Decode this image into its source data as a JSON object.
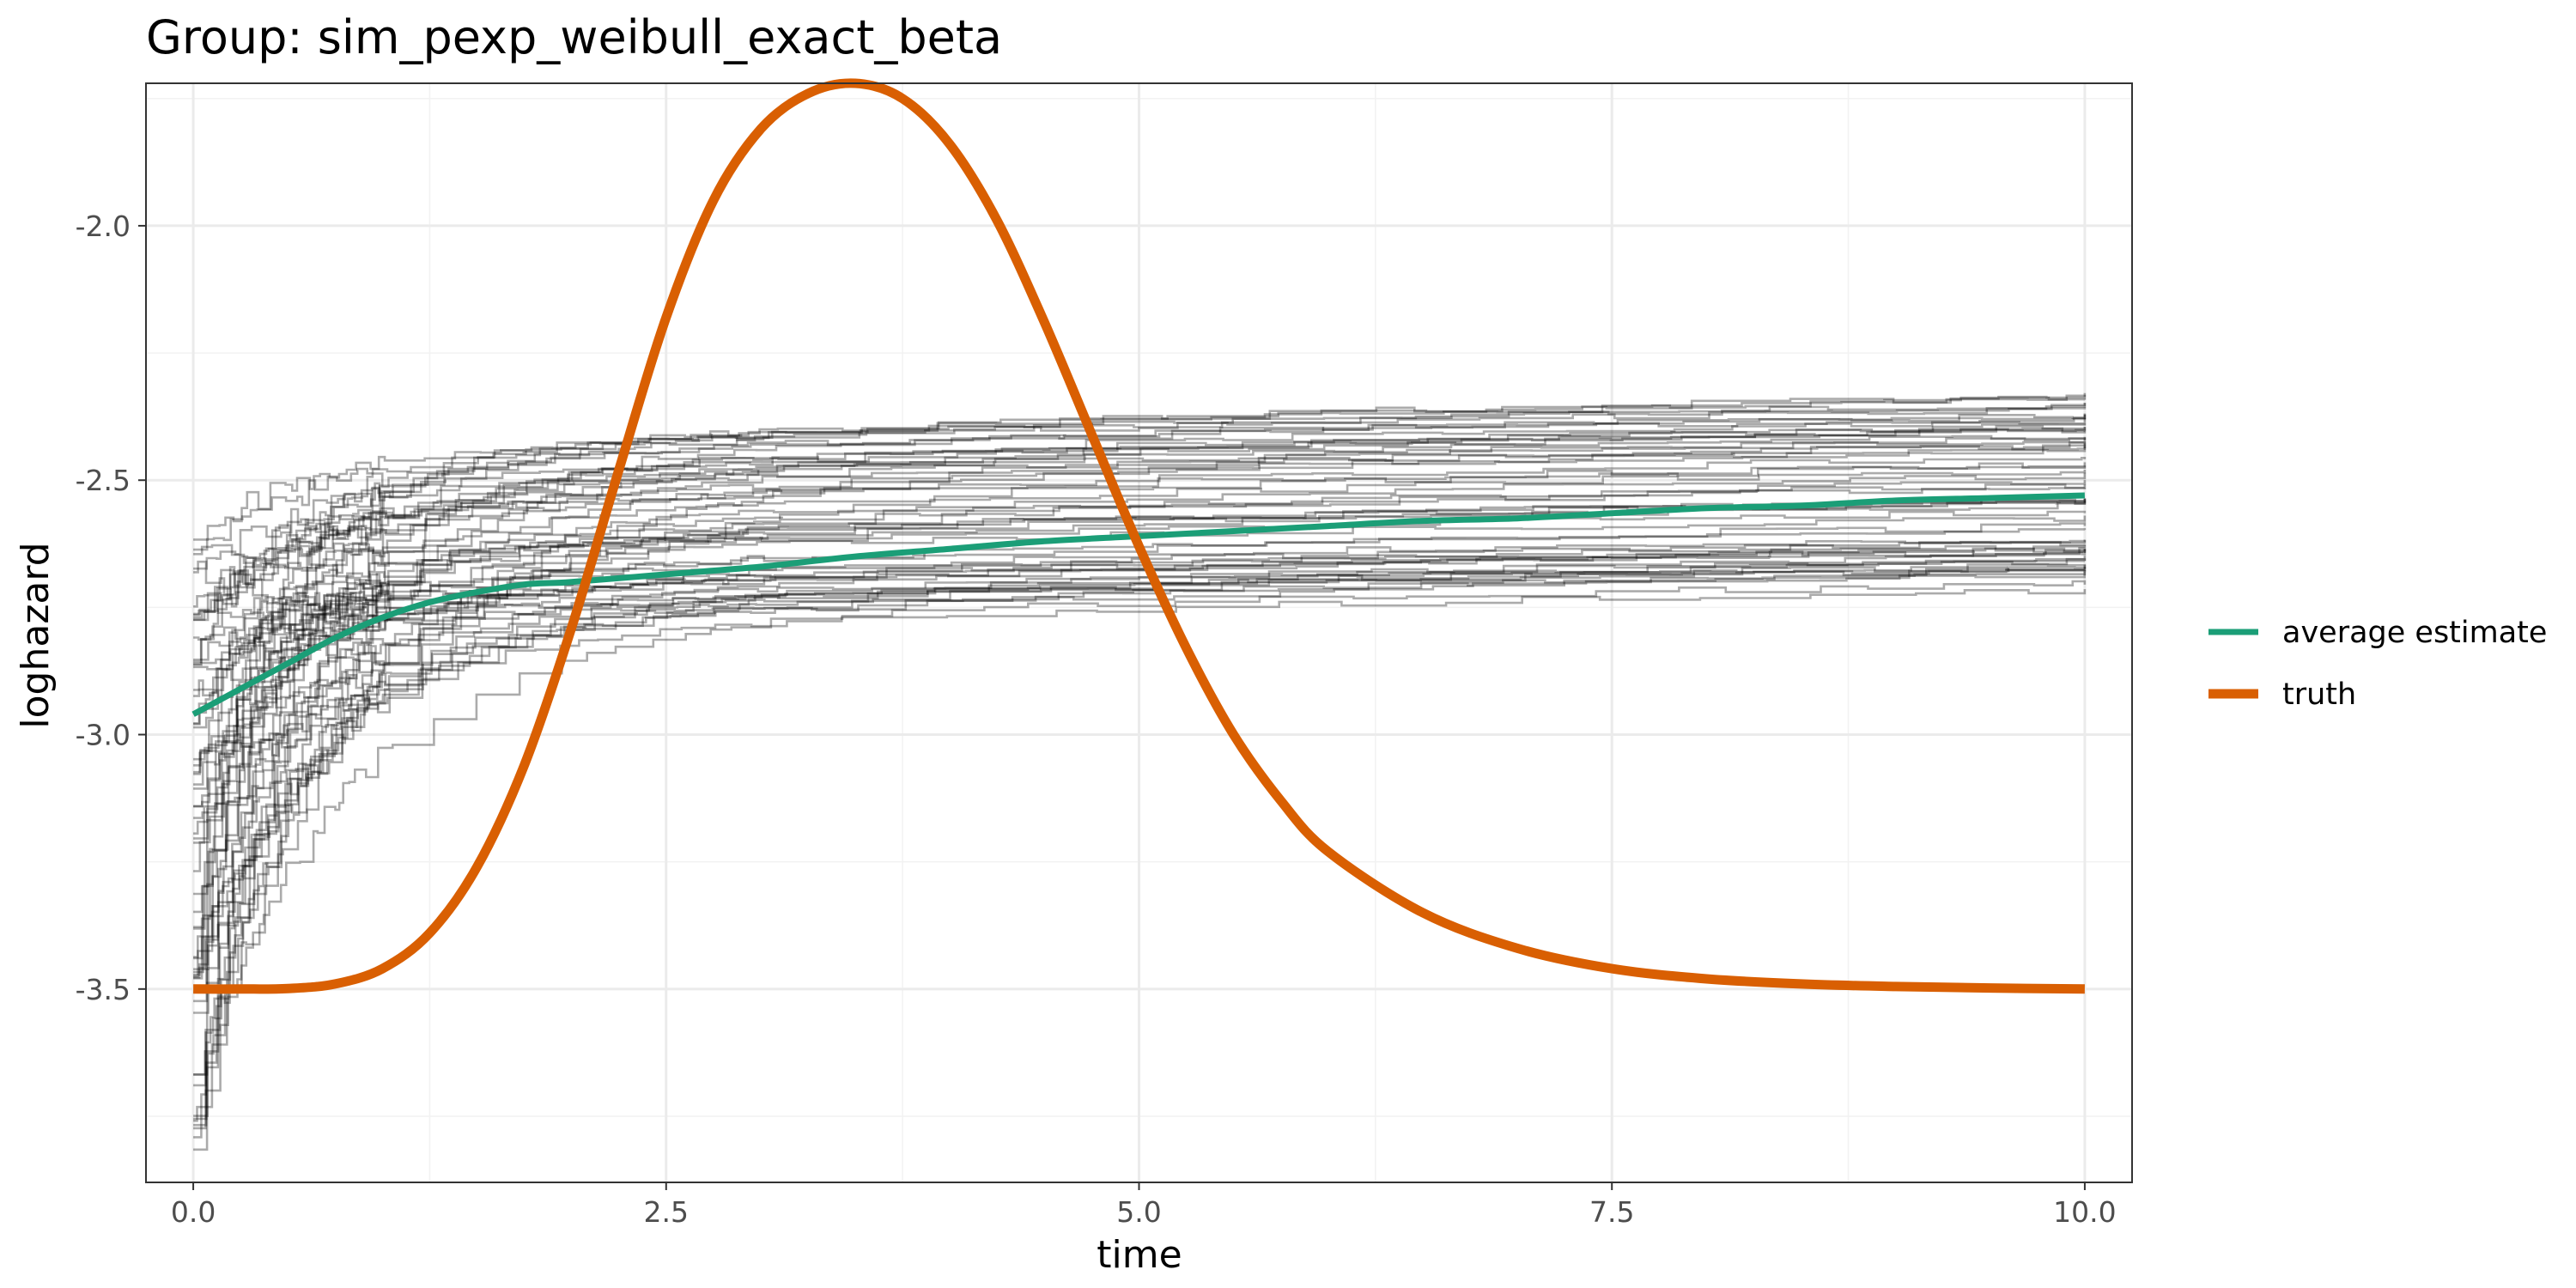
{
  "chart_data": {
    "type": "line",
    "title": "Group: sim_pexp_weibull_exact_beta",
    "xlabel": "time",
    "ylabel": "loghazard",
    "xlim": [
      -0.25,
      10.25
    ],
    "ylim": [
      -3.88,
      -1.72
    ],
    "x_ticks": [
      0,
      2.5,
      5,
      7.5,
      10
    ],
    "x_tick_labels": [
      "0.0",
      "2.5",
      "5.0",
      "7.5",
      "10.0"
    ],
    "y_ticks": [
      -3.5,
      -3.0,
      -2.5,
      -2.0
    ],
    "y_tick_labels": [
      "-3.5",
      "-3.0",
      "-2.5",
      "-2.0"
    ],
    "grid": true,
    "legend_position": "right",
    "series": [
      {
        "name": "average estimate",
        "color": "#1b9e77",
        "x": [
          0,
          0.25,
          0.5,
          0.75,
          1.0,
          1.25,
          1.5,
          1.75,
          2.0,
          2.5,
          3.0,
          3.5,
          4.0,
          4.5,
          5.0,
          5.5,
          6.0,
          6.5,
          7.0,
          7.5,
          8.0,
          8.5,
          9.0,
          9.5,
          10.0
        ],
        "y": [
          -2.96,
          -2.91,
          -2.86,
          -2.81,
          -2.77,
          -2.74,
          -2.72,
          -2.705,
          -2.7,
          -2.685,
          -2.67,
          -2.65,
          -2.635,
          -2.62,
          -2.61,
          -2.6,
          -2.59,
          -2.58,
          -2.575,
          -2.565,
          -2.555,
          -2.55,
          -2.54,
          -2.535,
          -2.53
        ]
      },
      {
        "name": "truth",
        "color": "#d95f02",
        "x": [
          0,
          0.25,
          0.5,
          0.75,
          1.0,
          1.25,
          1.5,
          1.75,
          2.0,
          2.25,
          2.5,
          2.75,
          3.0,
          3.25,
          3.5,
          3.75,
          4.0,
          4.25,
          4.5,
          4.75,
          5.0,
          5.25,
          5.5,
          5.75,
          6.0,
          6.5,
          7.0,
          7.5,
          8.0,
          8.5,
          9.0,
          9.5,
          10.0
        ],
        "y": [
          -3.5,
          -3.5,
          -3.499,
          -3.49,
          -3.46,
          -3.39,
          -3.26,
          -3.06,
          -2.79,
          -2.48,
          -2.18,
          -1.95,
          -1.81,
          -1.74,
          -1.72,
          -1.75,
          -1.84,
          -1.99,
          -2.19,
          -2.41,
          -2.63,
          -2.83,
          -3.0,
          -3.13,
          -3.23,
          -3.35,
          -3.42,
          -3.46,
          -3.48,
          -3.49,
          -3.495,
          -3.498,
          -3.5
        ]
      }
    ],
    "replicate_estimates": {
      "color": "#000000",
      "count": 60,
      "x_range": [
        0,
        10
      ],
      "start_y_range": [
        -3.82,
        -2.6
      ],
      "end_y_range": [
        -2.78,
        -2.34
      ]
    }
  }
}
